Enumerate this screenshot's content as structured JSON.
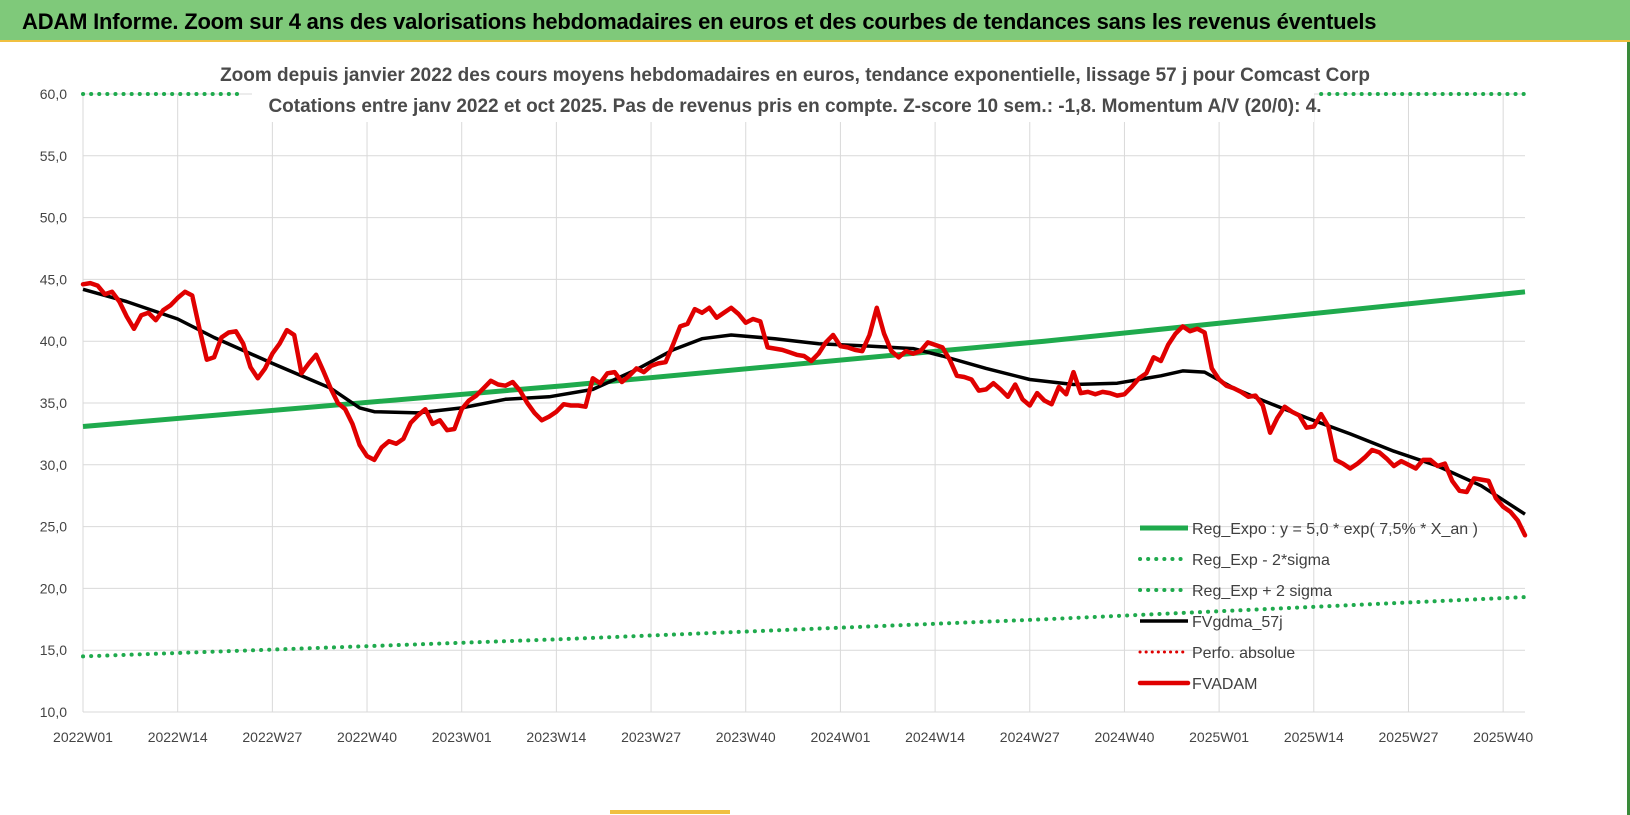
{
  "banner": {
    "title": "ADAM Informe. Zoom sur 4 ans des valorisations hebdomadaires en euros et des courbes de tendances sans les revenus éventuels"
  },
  "colors": {
    "banner_bg": "#7fc97a",
    "trend": "#1faa4d",
    "band": "#1faa4d",
    "fvgdma": "#000000",
    "fvadam": "#e00000",
    "perfo": "#e00000",
    "grid": "#d9d9d9"
  },
  "chart_data": {
    "type": "line",
    "title": "Zoom depuis janvier 2022 des cours moyens hebdomadaires en euros, tendance exponentielle, lissage 57 j pour Comcast Corp",
    "subtitle": "Cotations entre janv 2022 et oct 2025. Pas de revenus pris en compte. Z-score 10 sem.: -1,8. Momentum A/V (20/0): 4.",
    "xlabel": "",
    "ylabel": "",
    "ylim": [
      10,
      60
    ],
    "yticks": [
      "10,0",
      "15,0",
      "20,0",
      "25,0",
      "30,0",
      "35,0",
      "40,0",
      "45,0",
      "50,0",
      "55,0",
      "60,0"
    ],
    "x_range_weeks": [
      0,
      198
    ],
    "x_tick_weeks": [
      0,
      13,
      26,
      39,
      52,
      65,
      78,
      91,
      104,
      117,
      130,
      143,
      156,
      169,
      182,
      195
    ],
    "x_tick_labels": [
      "2022W01",
      "2022W14",
      "2022W27",
      "2022W40",
      "2023W01",
      "2023W14",
      "2023W27",
      "2023W40",
      "2024W01",
      "2024W14",
      "2024W27",
      "2024W40",
      "2025W01",
      "2025W14",
      "2025W27",
      "2025W40"
    ],
    "legend": [
      {
        "name": "Reg_Expo : y = 5,0 * exp( 7,5% *  X_an )",
        "style": "solid-green"
      },
      {
        "name": "Reg_Exp - 2*sigma",
        "style": "dotted-green"
      },
      {
        "name": "Reg_Exp + 2 sigma",
        "style": "dotted-green"
      },
      {
        "name": "FVgdma_57j",
        "style": "solid-black"
      },
      {
        "name": "Perfo. absolue",
        "style": "dotted-red"
      },
      {
        "name": "FVADAM",
        "style": "solid-red"
      }
    ],
    "series": [
      {
        "name": "Reg_Expo",
        "style": "solid-green",
        "points": [
          [
            0,
            33.1
          ],
          [
            66,
            36.4
          ],
          [
            132,
            40.0
          ],
          [
            198,
            44.0
          ]
        ]
      },
      {
        "name": "Reg_Exp - 2*sigma",
        "style": "dotted-green",
        "points": [
          [
            0,
            14.5
          ],
          [
            66,
            15.9
          ],
          [
            132,
            17.5
          ],
          [
            198,
            19.3
          ]
        ]
      },
      {
        "name": "Reg_Exp + 2 sigma",
        "style": "dotted-green",
        "segments": [
          [
            [
              0,
              60.0
            ],
            [
              22,
              60.0
            ]
          ],
          [
            [
              170,
              60.0
            ],
            [
              198,
              60.0
            ]
          ]
        ]
      },
      {
        "name": "FVgdma_57j",
        "style": "solid-black",
        "points": [
          [
            0,
            44.2
          ],
          [
            6,
            43.2
          ],
          [
            13,
            41.8
          ],
          [
            18,
            40.3
          ],
          [
            26,
            38.2
          ],
          [
            34,
            36.2
          ],
          [
            38,
            34.6
          ],
          [
            40,
            34.3
          ],
          [
            46,
            34.2
          ],
          [
            52,
            34.6
          ],
          [
            58,
            35.3
          ],
          [
            64,
            35.5
          ],
          [
            70,
            36.1
          ],
          [
            76,
            37.7
          ],
          [
            81,
            39.3
          ],
          [
            85,
            40.2
          ],
          [
            89,
            40.5
          ],
          [
            95,
            40.2
          ],
          [
            101,
            39.8
          ],
          [
            108,
            39.6
          ],
          [
            114,
            39.4
          ],
          [
            118,
            38.8
          ],
          [
            124,
            37.8
          ],
          [
            130,
            36.9
          ],
          [
            136,
            36.5
          ],
          [
            142,
            36.6
          ],
          [
            148,
            37.2
          ],
          [
            151,
            37.6
          ],
          [
            154,
            37.5
          ],
          [
            158,
            36.2
          ],
          [
            162,
            35.2
          ],
          [
            168,
            33.8
          ],
          [
            174,
            32.5
          ],
          [
            180,
            31.1
          ],
          [
            186,
            29.9
          ],
          [
            192,
            28.3
          ],
          [
            198,
            26.0
          ]
        ]
      },
      {
        "name": "FVADAM",
        "style": "solid-red",
        "points": [
          [
            0,
            44.6
          ],
          [
            1,
            44.7
          ],
          [
            2,
            44.5
          ],
          [
            3,
            43.8
          ],
          [
            4,
            44.0
          ],
          [
            5,
            43.2
          ],
          [
            6,
            42.0
          ],
          [
            7,
            41.0
          ],
          [
            8,
            42.1
          ],
          [
            9,
            42.3
          ],
          [
            10,
            41.7
          ],
          [
            11,
            42.5
          ],
          [
            12,
            42.9
          ],
          [
            13,
            43.5
          ],
          [
            14,
            44.0
          ],
          [
            15,
            43.7
          ],
          [
            16,
            41.0
          ],
          [
            17,
            38.5
          ],
          [
            18,
            38.7
          ],
          [
            19,
            40.3
          ],
          [
            20,
            40.7
          ],
          [
            21,
            40.8
          ],
          [
            22,
            39.8
          ],
          [
            23,
            37.9
          ],
          [
            24,
            37.0
          ],
          [
            25,
            37.8
          ],
          [
            26,
            39.0
          ],
          [
            27,
            39.8
          ],
          [
            28,
            40.9
          ],
          [
            29,
            40.5
          ],
          [
            30,
            37.4
          ],
          [
            31,
            38.2
          ],
          [
            32,
            38.9
          ],
          [
            33,
            37.6
          ],
          [
            34,
            36.2
          ],
          [
            35,
            35.0
          ],
          [
            36,
            34.5
          ],
          [
            37,
            33.3
          ],
          [
            38,
            31.6
          ],
          [
            39,
            30.7
          ],
          [
            40,
            30.4
          ],
          [
            41,
            31.4
          ],
          [
            42,
            31.9
          ],
          [
            43,
            31.7
          ],
          [
            44,
            32.1
          ],
          [
            45,
            33.4
          ],
          [
            46,
            34.0
          ],
          [
            47,
            34.5
          ],
          [
            48,
            33.3
          ],
          [
            49,
            33.6
          ],
          [
            50,
            32.8
          ],
          [
            51,
            32.9
          ],
          [
            52,
            34.5
          ],
          [
            53,
            35.2
          ],
          [
            54,
            35.6
          ],
          [
            55,
            36.2
          ],
          [
            56,
            36.8
          ],
          [
            57,
            36.5
          ],
          [
            58,
            36.4
          ],
          [
            59,
            36.7
          ],
          [
            60,
            36.0
          ],
          [
            61,
            35.0
          ],
          [
            62,
            34.2
          ],
          [
            63,
            33.6
          ],
          [
            64,
            33.9
          ],
          [
            65,
            34.3
          ],
          [
            66,
            34.9
          ],
          [
            67,
            34.8
          ],
          [
            68,
            34.8
          ],
          [
            69,
            34.7
          ],
          [
            70,
            37.0
          ],
          [
            71,
            36.6
          ],
          [
            72,
            37.4
          ],
          [
            73,
            37.5
          ],
          [
            74,
            36.7
          ],
          [
            75,
            37.2
          ],
          [
            76,
            37.8
          ],
          [
            77,
            37.5
          ],
          [
            78,
            38.0
          ],
          [
            79,
            38.2
          ],
          [
            80,
            38.3
          ],
          [
            81,
            39.7
          ],
          [
            82,
            41.2
          ],
          [
            83,
            41.4
          ],
          [
            84,
            42.6
          ],
          [
            85,
            42.3
          ],
          [
            86,
            42.7
          ],
          [
            87,
            41.9
          ],
          [
            88,
            42.3
          ],
          [
            89,
            42.7
          ],
          [
            90,
            42.2
          ],
          [
            91,
            41.5
          ],
          [
            92,
            41.8
          ],
          [
            93,
            41.6
          ],
          [
            94,
            39.5
          ],
          [
            95,
            39.4
          ],
          [
            96,
            39.3
          ],
          [
            97,
            39.1
          ],
          [
            98,
            38.9
          ],
          [
            99,
            38.8
          ],
          [
            100,
            38.4
          ],
          [
            101,
            39.0
          ],
          [
            102,
            39.9
          ],
          [
            103,
            40.5
          ],
          [
            104,
            39.6
          ],
          [
            105,
            39.5
          ],
          [
            106,
            39.3
          ],
          [
            107,
            39.2
          ],
          [
            108,
            40.5
          ],
          [
            109,
            42.7
          ],
          [
            110,
            40.6
          ],
          [
            111,
            39.2
          ],
          [
            112,
            38.7
          ],
          [
            113,
            39.2
          ],
          [
            114,
            39.0
          ],
          [
            115,
            39.2
          ],
          [
            116,
            39.9
          ],
          [
            117,
            39.7
          ],
          [
            118,
            39.5
          ],
          [
            119,
            38.5
          ],
          [
            120,
            37.2
          ],
          [
            121,
            37.1
          ],
          [
            122,
            36.9
          ],
          [
            123,
            36.0
          ],
          [
            124,
            36.1
          ],
          [
            125,
            36.6
          ],
          [
            126,
            36.1
          ],
          [
            127,
            35.5
          ],
          [
            128,
            36.5
          ],
          [
            129,
            35.3
          ],
          [
            130,
            34.8
          ],
          [
            131,
            35.8
          ],
          [
            132,
            35.2
          ],
          [
            133,
            34.9
          ],
          [
            134,
            36.3
          ],
          [
            135,
            35.7
          ],
          [
            136,
            37.5
          ],
          [
            137,
            35.8
          ],
          [
            138,
            35.9
          ],
          [
            139,
            35.7
          ],
          [
            140,
            35.9
          ],
          [
            141,
            35.8
          ],
          [
            142,
            35.6
          ],
          [
            143,
            35.7
          ],
          [
            144,
            36.3
          ],
          [
            145,
            37.0
          ],
          [
            146,
            37.4
          ],
          [
            147,
            38.7
          ],
          [
            148,
            38.4
          ],
          [
            149,
            39.7
          ],
          [
            150,
            40.6
          ],
          [
            151,
            41.2
          ],
          [
            152,
            40.8
          ],
          [
            153,
            41.0
          ],
          [
            154,
            40.7
          ],
          [
            155,
            37.8
          ],
          [
            156,
            36.9
          ],
          [
            157,
            36.4
          ],
          [
            158,
            36.2
          ],
          [
            159,
            35.9
          ],
          [
            160,
            35.5
          ],
          [
            161,
            35.6
          ],
          [
            162,
            34.8
          ],
          [
            163,
            32.6
          ],
          [
            164,
            33.8
          ],
          [
            165,
            34.7
          ],
          [
            166,
            34.3
          ],
          [
            167,
            34.0
          ],
          [
            168,
            33.0
          ],
          [
            169,
            33.1
          ],
          [
            170,
            34.1
          ],
          [
            171,
            33.1
          ],
          [
            172,
            30.4
          ],
          [
            173,
            30.1
          ],
          [
            174,
            29.7
          ],
          [
            175,
            30.1
          ],
          [
            176,
            30.6
          ],
          [
            177,
            31.2
          ],
          [
            178,
            31.0
          ],
          [
            179,
            30.5
          ],
          [
            180,
            29.9
          ],
          [
            181,
            30.3
          ],
          [
            182,
            30.0
          ],
          [
            183,
            29.7
          ],
          [
            184,
            30.4
          ],
          [
            185,
            30.4
          ],
          [
            186,
            29.9
          ],
          [
            187,
            30.1
          ],
          [
            188,
            28.7
          ],
          [
            189,
            27.9
          ],
          [
            190,
            27.8
          ],
          [
            191,
            28.9
          ],
          [
            192,
            28.8
          ],
          [
            193,
            28.7
          ],
          [
            194,
            27.3
          ],
          [
            195,
            26.6
          ],
          [
            196,
            26.2
          ],
          [
            197,
            25.5
          ],
          [
            198,
            24.3
          ]
        ]
      }
    ]
  }
}
